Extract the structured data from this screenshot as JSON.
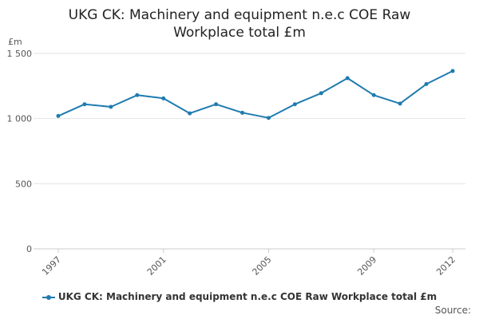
{
  "chart_data": {
    "type": "line",
    "title_lines": [
      "UKG CK: Machinery and equipment n.e.c COE Raw",
      "Workplace total £m"
    ],
    "ylabel": "£m",
    "xlabel": "",
    "ylim": [
      0,
      1500
    ],
    "yticks": [
      0,
      500,
      1000,
      1500
    ],
    "ytick_labels": [
      "0",
      "500",
      "1 000",
      "1 500"
    ],
    "xticks": [
      1997,
      2001,
      2005,
      2009,
      2012
    ],
    "xlim": [
      1997,
      2012
    ],
    "grid": true,
    "legend_position": "bottom",
    "series": [
      {
        "name": "UKG CK: Machinery and equipment n.e.c COE Raw Workplace total £m",
        "color": "#1f7bb0",
        "x": [
          1997,
          1998,
          1999,
          2000,
          2001,
          2002,
          2003,
          2004,
          2005,
          2006,
          2007,
          2008,
          2009,
          2010,
          2011,
          2012
        ],
        "values": [
          1020,
          1110,
          1090,
          1180,
          1155,
          1040,
          1110,
          1045,
          1005,
          1110,
          1195,
          1310,
          1180,
          1115,
          1265,
          1365
        ]
      }
    ]
  },
  "source_label": "Source:"
}
